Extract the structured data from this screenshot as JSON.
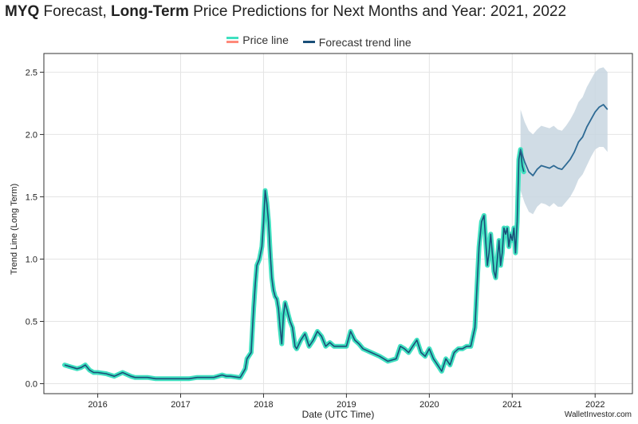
{
  "title": {
    "symbol": "MYQ",
    "part1": " Forecast, ",
    "bold": "Long-Term",
    "part2": " Price Predictions for Next Months and Year: 2021, 2022"
  },
  "legend": {
    "price": "Price line",
    "forecast": "Forecast trend line"
  },
  "credit": "WalletInvestor.com",
  "colors": {
    "price_outer": "#40e0c0",
    "price_inner": "#1a4f78",
    "forecast_line": "#2e6a94",
    "band": "#c8d6e0",
    "grid": "#e4e4e4"
  },
  "chart_data": {
    "type": "line",
    "xlabel": "Date (UTC Time)",
    "ylabel": "Trend Line (Long Term)",
    "xlim": [
      2015.35,
      2022.45
    ],
    "ylim": [
      -0.08,
      2.65
    ],
    "xticks": [
      {
        "value": 2016,
        "label": "2016"
      },
      {
        "value": 2017,
        "label": "2017"
      },
      {
        "value": 2018,
        "label": "2018"
      },
      {
        "value": 2019,
        "label": "2019"
      },
      {
        "value": 2020,
        "label": "2020"
      },
      {
        "value": 2021,
        "label": "2021"
      },
      {
        "value": 2022,
        "label": "2022"
      }
    ],
    "yticks": [
      {
        "value": 0.0,
        "label": "0.0"
      },
      {
        "value": 0.5,
        "label": "0.5"
      },
      {
        "value": 1.0,
        "label": "1.0"
      },
      {
        "value": 1.5,
        "label": "1.5"
      },
      {
        "value": 2.0,
        "label": "2.0"
      },
      {
        "value": 2.5,
        "label": "2.5"
      }
    ],
    "grid": true,
    "legend_position": "top-center",
    "series": [
      {
        "name": "Price line",
        "x": [
          2015.6,
          2015.65,
          2015.7,
          2015.75,
          2015.8,
          2015.85,
          2015.9,
          2015.95,
          2016.0,
          2016.1,
          2016.2,
          2016.3,
          2016.4,
          2016.45,
          2016.5,
          2016.6,
          2016.7,
          2016.8,
          2016.9,
          2017.0,
          2017.1,
          2017.2,
          2017.3,
          2017.4,
          2017.45,
          2017.5,
          2017.55,
          2017.6,
          2017.7,
          2017.72,
          2017.78,
          2017.8,
          2017.85,
          2017.88,
          2017.9,
          2017.92,
          2017.95,
          2017.98,
          2018.0,
          2018.02,
          2018.04,
          2018.06,
          2018.08,
          2018.1,
          2018.12,
          2018.14,
          2018.16,
          2018.18,
          2018.2,
          2018.22,
          2018.24,
          2018.26,
          2018.28,
          2018.3,
          2018.32,
          2018.35,
          2018.38,
          2018.4,
          2018.45,
          2018.5,
          2018.55,
          2018.6,
          2018.65,
          2018.7,
          2018.75,
          2018.8,
          2018.85,
          2018.9,
          2018.95,
          2019.0,
          2019.05,
          2019.1,
          2019.15,
          2019.2,
          2019.3,
          2019.4,
          2019.5,
          2019.6,
          2019.65,
          2019.7,
          2019.75,
          2019.8,
          2019.85,
          2019.9,
          2019.95,
          2020.0,
          2020.05,
          2020.1,
          2020.15,
          2020.2,
          2020.25,
          2020.3,
          2020.35,
          2020.4,
          2020.45,
          2020.5,
          2020.55,
          2020.6,
          2020.63,
          2020.66,
          2020.7,
          2020.72,
          2020.74,
          2020.76,
          2020.78,
          2020.8,
          2020.82,
          2020.84,
          2020.86,
          2020.88,
          2020.9,
          2020.92,
          2020.94,
          2020.96,
          2020.98,
          2021.0,
          2021.02,
          2021.04,
          2021.06,
          2021.08,
          2021.1,
          2021.12,
          2021.14
        ],
        "y": [
          0.15,
          0.14,
          0.13,
          0.12,
          0.13,
          0.15,
          0.11,
          0.09,
          0.09,
          0.08,
          0.06,
          0.09,
          0.06,
          0.05,
          0.05,
          0.05,
          0.04,
          0.04,
          0.04,
          0.04,
          0.04,
          0.05,
          0.05,
          0.05,
          0.06,
          0.07,
          0.06,
          0.06,
          0.05,
          0.05,
          0.12,
          0.2,
          0.25,
          0.6,
          0.8,
          0.95,
          1.0,
          1.1,
          1.3,
          1.55,
          1.45,
          1.3,
          1.05,
          0.85,
          0.75,
          0.7,
          0.68,
          0.6,
          0.45,
          0.32,
          0.55,
          0.65,
          0.6,
          0.55,
          0.5,
          0.45,
          0.3,
          0.28,
          0.35,
          0.4,
          0.3,
          0.35,
          0.42,
          0.38,
          0.3,
          0.33,
          0.3,
          0.3,
          0.3,
          0.3,
          0.42,
          0.35,
          0.32,
          0.28,
          0.25,
          0.22,
          0.18,
          0.2,
          0.3,
          0.28,
          0.25,
          0.3,
          0.35,
          0.25,
          0.22,
          0.28,
          0.2,
          0.15,
          0.1,
          0.2,
          0.15,
          0.25,
          0.28,
          0.28,
          0.3,
          0.3,
          0.45,
          1.1,
          1.3,
          1.35,
          0.95,
          1.05,
          1.2,
          1.05,
          0.9,
          0.85,
          1.0,
          1.15,
          0.95,
          1.05,
          1.25,
          1.2,
          1.25,
          1.1,
          1.2,
          1.15,
          1.25,
          1.05,
          1.3,
          1.8,
          1.88,
          1.75,
          1.7
        ],
        "style": "teal outlined line"
      },
      {
        "name": "Forecast trend line",
        "x": [
          2021.1,
          2021.15,
          2021.2,
          2021.25,
          2021.3,
          2021.35,
          2021.4,
          2021.45,
          2021.5,
          2021.55,
          2021.6,
          2021.65,
          2021.7,
          2021.75,
          2021.8,
          2021.85,
          2021.9,
          2021.95,
          2022.0,
          2022.05,
          2022.1,
          2022.15
        ],
        "y": [
          1.88,
          1.78,
          1.7,
          1.67,
          1.72,
          1.75,
          1.74,
          1.73,
          1.75,
          1.73,
          1.72,
          1.76,
          1.8,
          1.86,
          1.94,
          1.98,
          2.06,
          2.12,
          2.18,
          2.22,
          2.24,
          2.2
        ],
        "lower": [
          1.55,
          1.45,
          1.38,
          1.36,
          1.42,
          1.45,
          1.44,
          1.42,
          1.45,
          1.42,
          1.42,
          1.46,
          1.5,
          1.56,
          1.64,
          1.68,
          1.75,
          1.82,
          1.88,
          1.9,
          1.9,
          1.86
        ],
        "upper": [
          2.2,
          2.1,
          2.03,
          2.0,
          2.04,
          2.07,
          2.06,
          2.05,
          2.07,
          2.04,
          2.03,
          2.07,
          2.12,
          2.18,
          2.26,
          2.3,
          2.38,
          2.44,
          2.5,
          2.53,
          2.54,
          2.5
        ]
      }
    ]
  }
}
